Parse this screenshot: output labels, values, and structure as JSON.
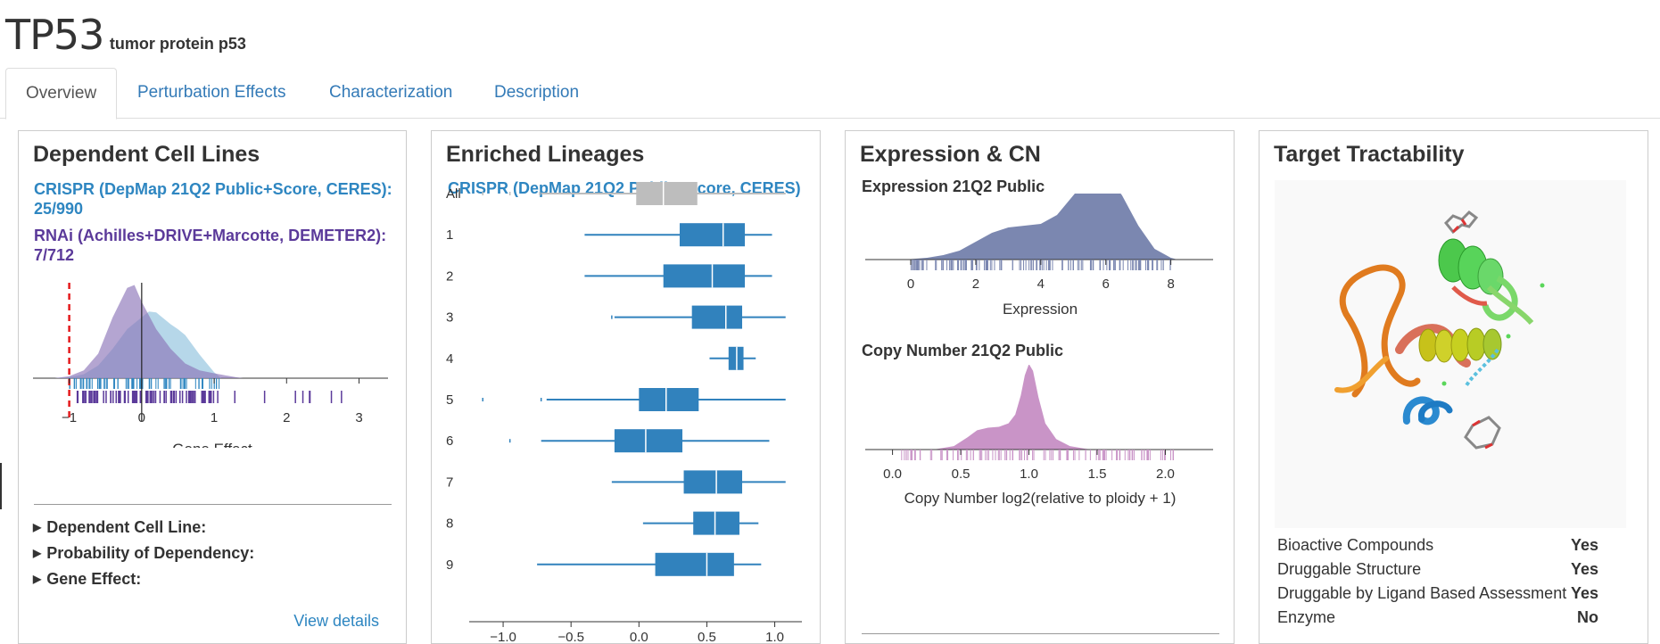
{
  "gene": {
    "symbol": "TP53",
    "name": "tumor protein p53"
  },
  "tabs": [
    {
      "label": "Overview",
      "active": true
    },
    {
      "label": "Perturbation Effects",
      "active": false
    },
    {
      "label": "Characterization",
      "active": false
    },
    {
      "label": "Description",
      "active": false
    }
  ],
  "dependent": {
    "title": "Dependent Cell Lines",
    "crispr_line1": "CRISPR (DepMap 21Q2 Public+Score, CERES):",
    "crispr_line2": "25/990",
    "rnai_line1": "RNAi (Achilles+DRIVE+Marcotte, DEMETER2):",
    "rnai_line2": "7/712",
    "xlabel": "Gene Effect",
    "ticks": [
      "−1",
      "0",
      "1",
      "2",
      "3"
    ],
    "details": [
      "Dependent Cell Line:",
      "Probability of Dependency:",
      "Gene Effect:"
    ],
    "view_details": "View details",
    "colors": {
      "crispr": "#9ecae1",
      "rnai": "#8c75b8",
      "threshold": "#e41a1c"
    }
  },
  "enriched": {
    "title": "Enriched Lineages",
    "subtitle": "CRISPR (DepMap 21Q2 Public+Score, CERES)",
    "xticks": [
      "−1.0",
      "−0.5",
      "0.0",
      "0.5",
      "1.0"
    ]
  },
  "expression": {
    "title": "Expression & CN",
    "expr_title": "Expression 21Q2 Public",
    "expr_xlabel": "Expression",
    "expr_ticks": [
      "0",
      "2",
      "4",
      "6",
      "8"
    ],
    "cn_title": "Copy Number 21Q2 Public",
    "cn_xlabel": "Copy Number log2(relative to ploidy + 1)",
    "cn_ticks": [
      "0.0",
      "0.5",
      "1.0",
      "1.5",
      "2.0"
    ],
    "colors": {
      "expr": "#7b87b0",
      "cn": "#c994c7"
    }
  },
  "tractability": {
    "title": "Target Tractability",
    "rows": [
      {
        "label": "Bioactive Compounds",
        "value": "Yes"
      },
      {
        "label": "Druggable Structure",
        "value": "Yes"
      },
      {
        "label": "Druggable by Ligand Based Assessment",
        "value": "Yes"
      },
      {
        "label": "Enzyme",
        "value": "No"
      }
    ]
  },
  "chart_data": [
    {
      "type": "area",
      "title": "Dependent Cell Lines",
      "xlabel": "Gene Effect",
      "xlim": [
        -1.5,
        3.4
      ],
      "xticks": [
        -1,
        0,
        1,
        2,
        3
      ],
      "threshold": -1,
      "series": [
        {
          "name": "CRISPR (DepMap 21Q2 Public+Score, CERES)",
          "x": [
            -1.2,
            -1.0,
            -0.8,
            -0.6,
            -0.4,
            -0.2,
            0.0,
            0.1,
            0.2,
            0.4,
            0.5,
            0.6,
            0.8,
            1.0,
            1.1
          ],
          "density": [
            0,
            0.01,
            0.04,
            0.13,
            0.3,
            0.5,
            0.62,
            0.68,
            0.67,
            0.55,
            0.5,
            0.44,
            0.24,
            0.06,
            0
          ]
        },
        {
          "name": "RNAi (Achilles+DRIVE+Marcotte, DEMETER2)",
          "x": [
            -1.2,
            -1.0,
            -0.8,
            -0.6,
            -0.4,
            -0.2,
            -0.1,
            0.0,
            0.2,
            0.4,
            0.6,
            0.8,
            1.0,
            1.3,
            1.4
          ],
          "density": [
            0,
            0.02,
            0.08,
            0.25,
            0.62,
            0.92,
            0.95,
            0.78,
            0.5,
            0.3,
            0.15,
            0.08,
            0.05,
            0.01,
            0
          ]
        }
      ]
    },
    {
      "type": "box",
      "title": "Enriched Lineages",
      "xlim": [
        -1.25,
        1.2
      ],
      "xticks": [
        -1.0,
        -0.5,
        0.0,
        0.5,
        1.0
      ],
      "categories": [
        "All",
        "1",
        "2",
        "3",
        "4",
        "5",
        "6",
        "7",
        "8",
        "9"
      ],
      "boxes": [
        {
          "whisker_low": -0.72,
          "q1": -0.02,
          "median": 0.18,
          "q3": 0.43,
          "whisker_high": 1.08,
          "outliers": [
            -1.15,
            -0.95,
            -0.73
          ],
          "color": "#bdbdbd"
        },
        {
          "whisker_low": -0.4,
          "q1": 0.3,
          "median": 0.62,
          "q3": 0.78,
          "whisker_high": 0.98,
          "outliers": [],
          "color": "#3182bd"
        },
        {
          "whisker_low": -0.4,
          "q1": 0.18,
          "median": 0.54,
          "q3": 0.78,
          "whisker_high": 0.98,
          "outliers": [],
          "color": "#3182bd"
        },
        {
          "whisker_low": -0.18,
          "q1": 0.39,
          "median": 0.64,
          "q3": 0.76,
          "whisker_high": 1.08,
          "outliers": [
            -0.2
          ],
          "color": "#3182bd"
        },
        {
          "whisker_low": 0.52,
          "q1": 0.66,
          "median": 0.72,
          "q3": 0.77,
          "whisker_high": 0.86,
          "outliers": [],
          "color": "#3182bd"
        },
        {
          "whisker_low": -0.68,
          "q1": 0.0,
          "median": 0.2,
          "q3": 0.44,
          "whisker_high": 1.08,
          "outliers": [
            -1.15,
            -0.72
          ],
          "color": "#3182bd"
        },
        {
          "whisker_low": -0.72,
          "q1": -0.18,
          "median": 0.05,
          "q3": 0.32,
          "whisker_high": 0.96,
          "outliers": [
            -0.95
          ],
          "color": "#3182bd"
        },
        {
          "whisker_low": -0.2,
          "q1": 0.33,
          "median": 0.57,
          "q3": 0.76,
          "whisker_high": 1.08,
          "outliers": [],
          "color": "#3182bd"
        },
        {
          "whisker_low": 0.03,
          "q1": 0.4,
          "median": 0.56,
          "q3": 0.74,
          "whisker_high": 0.88,
          "outliers": [],
          "color": "#3182bd"
        },
        {
          "whisker_low": -0.75,
          "q1": 0.12,
          "median": 0.5,
          "q3": 0.7,
          "whisker_high": 0.9,
          "outliers": [],
          "color": "#3182bd"
        }
      ]
    },
    {
      "type": "area",
      "title": "Expression 21Q2 Public",
      "xlabel": "Expression",
      "xlim": [
        -1.4,
        9.3
      ],
      "xticks": [
        0,
        2,
        4,
        6,
        8
      ],
      "x": [
        -0.2,
        0.5,
        1.0,
        1.5,
        2.0,
        2.5,
        3.0,
        3.5,
        4.0,
        4.5,
        5.0,
        5.5,
        5.8,
        6.0,
        6.5,
        7.0,
        7.5,
        8.0,
        8.2
      ],
      "density": [
        0,
        0.02,
        0.05,
        0.1,
        0.2,
        0.3,
        0.36,
        0.38,
        0.4,
        0.5,
        0.72,
        0.94,
        1.0,
        0.96,
        0.72,
        0.38,
        0.12,
        0.02,
        0
      ]
    },
    {
      "type": "area",
      "title": "Copy Number 21Q2 Public",
      "xlabel": "Copy Number log2(relative to ploidy + 1)",
      "xlim": [
        -0.2,
        2.35
      ],
      "xticks": [
        0.0,
        0.5,
        1.0,
        1.5,
        2.0
      ],
      "x": [
        0.3,
        0.45,
        0.55,
        0.62,
        0.7,
        0.78,
        0.85,
        0.9,
        0.94,
        0.97,
        1.0,
        1.03,
        1.07,
        1.12,
        1.2,
        1.3,
        1.45
      ],
      "density": [
        0,
        0.04,
        0.14,
        0.22,
        0.25,
        0.26,
        0.3,
        0.4,
        0.62,
        0.85,
        0.98,
        0.9,
        0.6,
        0.3,
        0.12,
        0.04,
        0
      ]
    }
  ]
}
